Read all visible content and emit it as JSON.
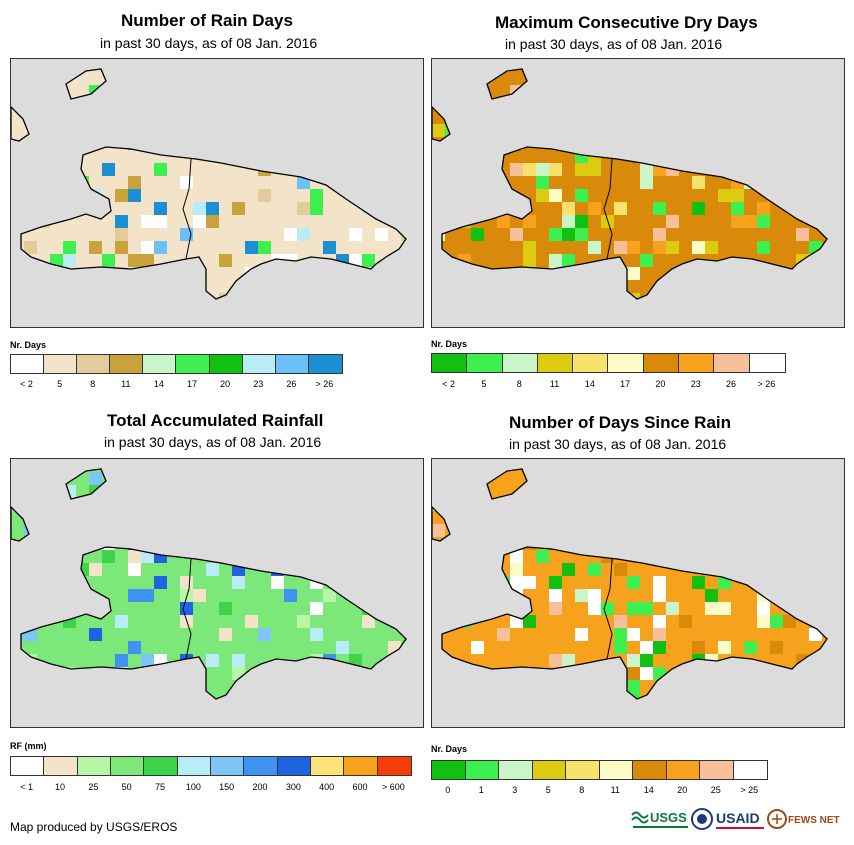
{
  "credit": "Map produced by USGS/EROS",
  "logos": {
    "usgs": "USGS",
    "usaid": "USAID",
    "fews": "FEWS NET"
  },
  "colors": {
    "map_bg": "#dcdcdc",
    "outline": "#000000"
  },
  "panels": [
    {
      "id": "rain-days",
      "title": "Number of Rain Days",
      "subtitle": "in past 30 days, as of 08 Jan. 2016",
      "legend_title": "Nr. Days",
      "legend_colors": [
        "#ffffff",
        "#f3e4c9",
        "#e3cc9c",
        "#c9a23c",
        "#c9f5c9",
        "#3ef04f",
        "#11c011",
        "#b8ecf7",
        "#6bc1f7",
        "#1a8fd1"
      ],
      "legend_labels": [
        "< 2",
        "5",
        "8",
        "11",
        "14",
        "17",
        "20",
        "23",
        "26",
        "> 26"
      ],
      "dominant": 1,
      "accents": [
        3,
        5,
        7,
        8,
        9,
        0,
        0,
        2
      ]
    },
    {
      "id": "dry-days",
      "title": "Maximum Consecutive Dry Days",
      "subtitle": "in past 30 days, as of 08 Jan. 2016",
      "legend_title": "Nr. Days",
      "legend_colors": [
        "#11c011",
        "#3ef04f",
        "#c9f5c9",
        "#dccb11",
        "#f7e36b",
        "#fdfbc6",
        "#d98a0a",
        "#f7a21c",
        "#f7c09a",
        "#ffffff"
      ],
      "legend_labels": [
        "< 2",
        "5",
        "8",
        "11",
        "14",
        "17",
        "20",
        "23",
        "26",
        "> 26"
      ],
      "dominant": 6,
      "accents": [
        7,
        8,
        5,
        4,
        3,
        1,
        2,
        0
      ]
    },
    {
      "id": "rainfall",
      "title": "Total Accumulated Rainfall",
      "subtitle": "in past 30 days, as of 08 Jan. 2016",
      "legend_title": "RF (mm)",
      "legend_colors": [
        "#ffffff",
        "#f3e4c9",
        "#b8f5a5",
        "#7de87a",
        "#3ed44a",
        "#b8ecf7",
        "#7dc4f7",
        "#3f93f0",
        "#1f63e0",
        "#fde37a",
        "#f7a21c",
        "#f53d0a"
      ],
      "legend_labels": [
        "< 1",
        "10",
        "25",
        "50",
        "75",
        "100",
        "150",
        "200",
        "300",
        "400",
        "600",
        "> 600"
      ],
      "dominant": 3,
      "accents": [
        2,
        4,
        5,
        6,
        7,
        8,
        1,
        0
      ]
    },
    {
      "id": "days-since-rain",
      "title": "Number of Days Since Rain",
      "subtitle": "in past 30 days, as of 08 Jan. 2016",
      "legend_title": "Nr. Days",
      "legend_colors": [
        "#11c011",
        "#3ef04f",
        "#c9f5c9",
        "#dccb11",
        "#f7e36b",
        "#fdfbc6",
        "#d98a0a",
        "#f7a21c",
        "#f7c09a",
        "#ffffff"
      ],
      "legend_labels": [
        "0",
        "1",
        "3",
        "5",
        "8",
        "11",
        "14",
        "20",
        "25",
        "> 25"
      ],
      "dominant": 7,
      "accents": [
        6,
        8,
        0,
        1,
        2,
        9,
        9,
        5
      ]
    }
  ]
}
